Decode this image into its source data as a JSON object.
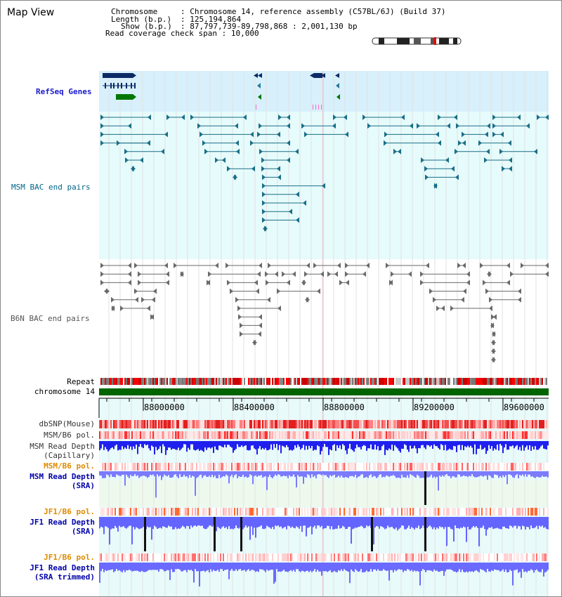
{
  "title": "Map View",
  "info": {
    "chromosome_key": "Chromosome",
    "chromosome_val": "Chromosome 14, reference assembly (C57BL/6J) (Build 37)",
    "length_key": "Length (b.p.)",
    "length_val": "125,194,864",
    "show_key": "Show (b.p.)",
    "show_val": "87,797,739-89,798,868 : 2,001,130 bp",
    "read_key": "Read coverage check span",
    "read_val": "10,000"
  },
  "tracks": {
    "refseq": "RefSeq Genes",
    "msm_bac": "MSM BAC end pairs",
    "b6n_bac": "B6N BAC end pairs",
    "repeat": "Repeat",
    "chromosome": "chromosome 14",
    "dbsnp": "dbSNP(Mouse)",
    "msm_b6_pol_1": "MSM/B6 pol.",
    "msm_read_depth_cap_1": "MSM Read Depth",
    "msm_read_depth_cap_2": "(Capillary)",
    "msm_b6_pol_2": "MSM/B6 pol.",
    "msm_read_depth_sra_1": "MSM Read Depth",
    "msm_read_depth_sra_2": "(SRA)",
    "jf1_b6_pol_1": "JF1/B6 pol.",
    "jf1_read_depth_sra_1": "JF1 Read Depth",
    "jf1_read_depth_sra_2": "(SRA)",
    "jf1_b6_pol_2": "JF1/B6 pol.",
    "jf1_read_depth_trim_1": "JF1 Read Depth",
    "jf1_read_depth_trim_2": "(SRA trimmed)"
  },
  "axis": {
    "ticks": [
      "88000000",
      "88400000",
      "88800000",
      "89200000",
      "89600000"
    ]
  },
  "colors": {
    "refseq_text": "#0000cc",
    "msm_bac_text": "#006688",
    "b6n_bac_text": "#555555",
    "orange_text": "#e08a00",
    "blue_text": "#0000aa",
    "refseq_bg": "#d7f0fb",
    "msm_bg": "#e6fbfb",
    "grid": "#e2e2e2"
  }
}
